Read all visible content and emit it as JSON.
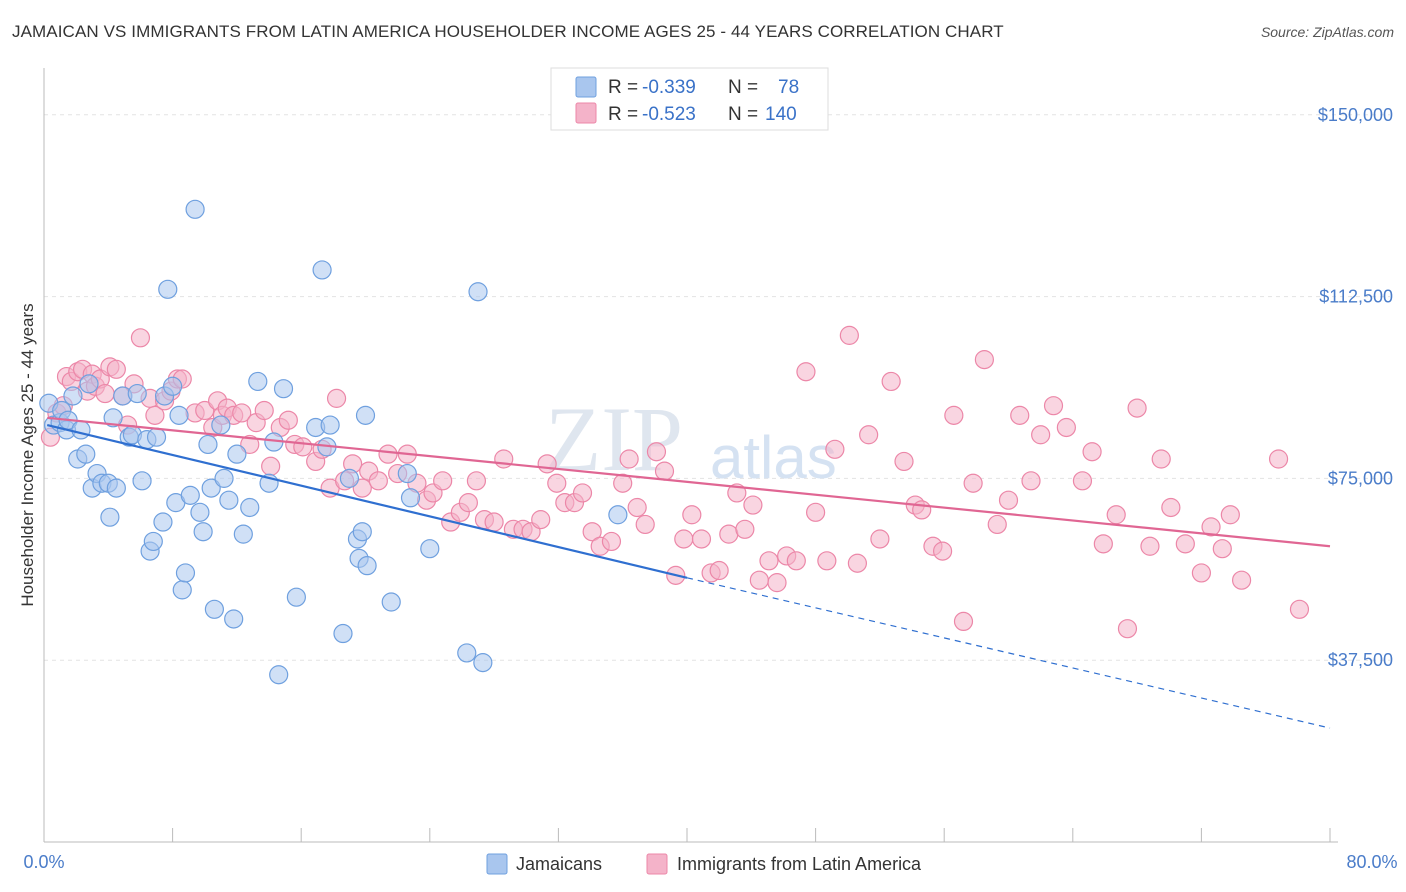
{
  "title": "JAMAICAN VS IMMIGRANTS FROM LATIN AMERICA HOUSEHOLDER INCOME AGES 25 - 44 YEARS CORRELATION CHART",
  "source": "Source: ZipAtlas.com",
  "watermark": "ZIPatlas",
  "legend": {
    "rows": [
      {
        "r_label": "R = ",
        "r_value": "-0.339",
        "n_label": "N = ",
        "n_value": "78",
        "color": "#a9c6ee"
      },
      {
        "r_label": "R = ",
        "r_value": "-0.523",
        "n_label": "N = ",
        "n_value": "140",
        "color": "#f4b3c9"
      }
    ]
  },
  "bottom_legend": [
    {
      "label": "Jamaicans",
      "color": "#a9c6ee"
    },
    {
      "label": "Immigrants from Latin America",
      "color": "#f4b3c9"
    }
  ],
  "chart_data": {
    "type": "scatter",
    "title": "JAMAICAN VS IMMIGRANTS FROM LATIN AMERICA HOUSEHOLDER INCOME AGES 25 - 44 YEARS CORRELATION CHART",
    "xlabel": "",
    "ylabel": "Householder Income Ages 25 - 44 years",
    "xlim": [
      0,
      80
    ],
    "ylim": [
      0,
      158000
    ],
    "x_tick_labels": [
      "0.0%",
      "80.0%"
    ],
    "y_ticks": [
      37500,
      75000,
      112500,
      150000
    ],
    "y_tick_labels": [
      "$37,500",
      "$75,000",
      "$112,500",
      "$150,000"
    ],
    "grid": true,
    "legend_position": "top-center",
    "series": [
      {
        "name": "Jamaicans",
        "color": "#6fa0df",
        "fill": "#a9c6ee",
        "trend": {
          "x0": 0.2,
          "y0": 86000,
          "x1": 40,
          "y1": 54500,
          "dashed_to_x": 80,
          "dashed_to_y": 23500
        },
        "points": [
          [
            0.3,
            90500
          ],
          [
            0.6,
            86000
          ],
          [
            1.0,
            86500
          ],
          [
            1.1,
            89000
          ],
          [
            1.4,
            85000
          ],
          [
            1.5,
            87000
          ],
          [
            1.8,
            92000
          ],
          [
            2.1,
            79000
          ],
          [
            2.3,
            85000
          ],
          [
            2.6,
            80000
          ],
          [
            2.8,
            94500
          ],
          [
            3.0,
            73000
          ],
          [
            3.3,
            76000
          ],
          [
            3.6,
            74000
          ],
          [
            4.0,
            74000
          ],
          [
            4.1,
            67000
          ],
          [
            4.3,
            87500
          ],
          [
            4.5,
            73000
          ],
          [
            4.9,
            92000
          ],
          [
            5.3,
            83500
          ],
          [
            5.5,
            84000
          ],
          [
            5.8,
            92500
          ],
          [
            6.1,
            74500
          ],
          [
            6.4,
            83000
          ],
          [
            6.6,
            60000
          ],
          [
            6.8,
            62000
          ],
          [
            7.0,
            83500
          ],
          [
            7.4,
            66000
          ],
          [
            7.5,
            92000
          ],
          [
            7.7,
            114000
          ],
          [
            8.0,
            94000
          ],
          [
            8.2,
            70000
          ],
          [
            8.4,
            88000
          ],
          [
            8.6,
            52000
          ],
          [
            8.8,
            55500
          ],
          [
            9.1,
            71500
          ],
          [
            9.4,
            130500
          ],
          [
            9.7,
            68000
          ],
          [
            9.9,
            64000
          ],
          [
            10.2,
            82000
          ],
          [
            10.4,
            73000
          ],
          [
            10.6,
            48000
          ],
          [
            11.0,
            86000
          ],
          [
            11.2,
            75000
          ],
          [
            11.5,
            70500
          ],
          [
            11.8,
            46000
          ],
          [
            12.0,
            80000
          ],
          [
            12.4,
            63500
          ],
          [
            12.8,
            69000
          ],
          [
            13.3,
            95000
          ],
          [
            14.0,
            74000
          ],
          [
            14.3,
            82500
          ],
          [
            14.9,
            93500
          ],
          [
            14.6,
            34500
          ],
          [
            15.7,
            50500
          ],
          [
            16.9,
            85500
          ],
          [
            17.3,
            118000
          ],
          [
            17.6,
            81500
          ],
          [
            17.8,
            86000
          ],
          [
            19.0,
            75000
          ],
          [
            19.5,
            62500
          ],
          [
            19.6,
            58500
          ],
          [
            19.8,
            64000
          ],
          [
            20.0,
            88000
          ],
          [
            20.1,
            57000
          ],
          [
            18.6,
            43000
          ],
          [
            21.6,
            49500
          ],
          [
            22.6,
            76000
          ],
          [
            22.8,
            71000
          ],
          [
            24.0,
            60500
          ],
          [
            26.3,
            39000
          ],
          [
            27.0,
            113500
          ],
          [
            27.3,
            37000
          ],
          [
            35.7,
            67500
          ]
        ]
      },
      {
        "name": "Immigrants from Latin America",
        "color": "#ec87a8",
        "fill": "#f4b3c9",
        "trend": {
          "x0": 0.2,
          "y0": 87500,
          "x1": 80,
          "y1": 61000
        },
        "points": [
          [
            0.4,
            83500
          ],
          [
            0.8,
            88500
          ],
          [
            1.2,
            90000
          ],
          [
            1.4,
            96000
          ],
          [
            1.7,
            95000
          ],
          [
            2.1,
            97000
          ],
          [
            2.4,
            97500
          ],
          [
            2.7,
            93000
          ],
          [
            3.0,
            96500
          ],
          [
            3.2,
            94000
          ],
          [
            3.5,
            95500
          ],
          [
            3.8,
            92500
          ],
          [
            4.1,
            98000
          ],
          [
            4.5,
            97500
          ],
          [
            4.9,
            92000
          ],
          [
            5.2,
            86000
          ],
          [
            5.6,
            94500
          ],
          [
            6.0,
            104000
          ],
          [
            6.6,
            91500
          ],
          [
            6.9,
            88000
          ],
          [
            7.5,
            91000
          ],
          [
            7.9,
            93000
          ],
          [
            8.3,
            95500
          ],
          [
            8.6,
            95500
          ],
          [
            9.4,
            88500
          ],
          [
            10.0,
            89000
          ],
          [
            10.5,
            85500
          ],
          [
            10.8,
            91000
          ],
          [
            11.1,
            88000
          ],
          [
            11.4,
            89500
          ],
          [
            11.8,
            88000
          ],
          [
            12.3,
            88500
          ],
          [
            12.8,
            82000
          ],
          [
            13.2,
            86500
          ],
          [
            13.7,
            89000
          ],
          [
            14.1,
            77500
          ],
          [
            14.7,
            85500
          ],
          [
            15.2,
            87000
          ],
          [
            15.6,
            82000
          ],
          [
            16.1,
            81500
          ],
          [
            16.9,
            78500
          ],
          [
            17.3,
            81000
          ],
          [
            17.8,
            73000
          ],
          [
            18.2,
            91500
          ],
          [
            18.7,
            74500
          ],
          [
            19.2,
            78000
          ],
          [
            19.8,
            73000
          ],
          [
            20.2,
            76500
          ],
          [
            20.8,
            74500
          ],
          [
            21.4,
            80000
          ],
          [
            22.0,
            76000
          ],
          [
            22.6,
            80000
          ],
          [
            23.2,
            74000
          ],
          [
            23.8,
            70500
          ],
          [
            24.2,
            72000
          ],
          [
            24.8,
            74500
          ],
          [
            25.3,
            66000
          ],
          [
            25.9,
            68000
          ],
          [
            26.4,
            70000
          ],
          [
            26.9,
            74500
          ],
          [
            27.4,
            66500
          ],
          [
            28.0,
            66000
          ],
          [
            28.6,
            79000
          ],
          [
            29.2,
            64500
          ],
          [
            29.8,
            64500
          ],
          [
            30.3,
            64000
          ],
          [
            30.9,
            66500
          ],
          [
            31.3,
            78000
          ],
          [
            31.9,
            74000
          ],
          [
            32.4,
            70000
          ],
          [
            33.0,
            70000
          ],
          [
            33.5,
            72000
          ],
          [
            34.1,
            64000
          ],
          [
            34.6,
            61000
          ],
          [
            35.3,
            62000
          ],
          [
            36.0,
            74000
          ],
          [
            36.4,
            79000
          ],
          [
            36.9,
            69000
          ],
          [
            37.4,
            65500
          ],
          [
            38.1,
            80500
          ],
          [
            38.6,
            76500
          ],
          [
            39.3,
            55000
          ],
          [
            39.8,
            62500
          ],
          [
            40.3,
            67500
          ],
          [
            40.9,
            62500
          ],
          [
            41.5,
            55500
          ],
          [
            42.0,
            56000
          ],
          [
            42.6,
            63500
          ],
          [
            43.1,
            72000
          ],
          [
            43.6,
            64500
          ],
          [
            44.1,
            69500
          ],
          [
            44.5,
            54000
          ],
          [
            45.1,
            58000
          ],
          [
            45.6,
            53500
          ],
          [
            46.2,
            59000
          ],
          [
            46.8,
            58000
          ],
          [
            47.4,
            97000
          ],
          [
            48.0,
            68000
          ],
          [
            48.7,
            58000
          ],
          [
            49.2,
            81000
          ],
          [
            50.1,
            104500
          ],
          [
            50.6,
            57500
          ],
          [
            51.3,
            84000
          ],
          [
            52.0,
            62500
          ],
          [
            52.7,
            95000
          ],
          [
            53.5,
            78500
          ],
          [
            54.2,
            69500
          ],
          [
            54.6,
            68500
          ],
          [
            55.3,
            61000
          ],
          [
            55.9,
            60000
          ],
          [
            56.6,
            88000
          ],
          [
            57.2,
            45500
          ],
          [
            57.8,
            74000
          ],
          [
            58.5,
            99500
          ],
          [
            59.3,
            65500
          ],
          [
            60.0,
            70500
          ],
          [
            60.7,
            88000
          ],
          [
            61.4,
            74500
          ],
          [
            62.0,
            84000
          ],
          [
            62.8,
            90000
          ],
          [
            63.6,
            85500
          ],
          [
            64.6,
            74500
          ],
          [
            65.2,
            80500
          ],
          [
            65.9,
            61500
          ],
          [
            66.7,
            67500
          ],
          [
            67.4,
            44000
          ],
          [
            68.0,
            89500
          ],
          [
            68.8,
            61000
          ],
          [
            69.5,
            79000
          ],
          [
            70.1,
            69000
          ],
          [
            71.0,
            61500
          ],
          [
            72.0,
            55500
          ],
          [
            72.6,
            65000
          ],
          [
            73.3,
            60500
          ],
          [
            73.8,
            67500
          ],
          [
            74.5,
            54000
          ],
          [
            76.8,
            79000
          ],
          [
            78.1,
            48000
          ]
        ]
      }
    ]
  }
}
